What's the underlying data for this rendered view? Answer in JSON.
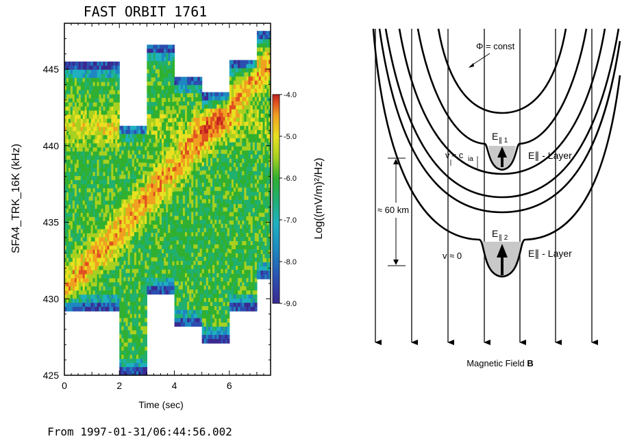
{
  "spectrogram": {
    "title": "FAST ORBIT 1761",
    "ylabel": "SFA4_TRK_16K   (kHz)",
    "xlabel": "Time (sec)",
    "footer": "From 1997-01-31/06:44:56.002",
    "colorbar_label": "Log((mV/m)²/Hz)",
    "yticks": [
      "425",
      "430",
      "435",
      "440",
      "445"
    ],
    "xticks": [
      "0",
      "2",
      "4",
      "6"
    ],
    "cticks": [
      "-4.0",
      "-5.0",
      "-6.0",
      "-7.0",
      "-8.0",
      "-9.0"
    ],
    "colormap": [
      "#3a2a90",
      "#2c4fb0",
      "#1e86c0",
      "#1fb0c0",
      "#20b070",
      "#30b030",
      "#a8d020",
      "#e8e020",
      "#f0a020",
      "#e05020",
      "#c02020"
    ]
  },
  "chart_data": {
    "type": "heatmap",
    "title": "FAST ORBIT 1761",
    "xlabel": "Time (sec)",
    "ylabel": "SFA4_TRK_16K   (kHz)",
    "xlim": [
      0,
      7.5
    ],
    "ylim": [
      425,
      448
    ],
    "colorbar": {
      "label": "Log((mV/m)²/Hz)",
      "range": [
        -9.0,
        -4.0
      ]
    },
    "sweeps": [
      {
        "t0": 0.0,
        "t1": 2.0,
        "fmin": 429.2,
        "fmax": 445.5
      },
      {
        "t0": 2.0,
        "t1": 3.0,
        "fmin": 425.0,
        "fmax": 441.3
      },
      {
        "t0": 3.0,
        "t1": 4.0,
        "fmin": 430.3,
        "fmax": 446.6
      },
      {
        "t0": 4.0,
        "t1": 5.0,
        "fmin": 428.2,
        "fmax": 444.5
      },
      {
        "t0": 5.0,
        "t1": 6.0,
        "fmin": 427.1,
        "fmax": 443.5
      },
      {
        "t0": 6.0,
        "t1": 7.0,
        "fmin": 429.2,
        "fmax": 445.6
      },
      {
        "t0": 7.0,
        "t1": 7.5,
        "fmin": 431.3,
        "fmax": 447.5
      }
    ]
  },
  "diagram": {
    "phi_label": "Φ = const",
    "e1_label": "E",
    "e1_sub": "∥ 1",
    "e2_label": "E",
    "e2_sub": "∥ 2",
    "layer_label_1": "E∥ - Layer",
    "layer_label_2": "E∥ - Layer",
    "v1_label": "v",
    "v1_mid": "≈ c",
    "v1_sub": "ia",
    "v2_label": "v ≈ 0",
    "dist_label": "≈ 60 km",
    "field_label": "Magnetic Field ",
    "field_bold": "B"
  }
}
